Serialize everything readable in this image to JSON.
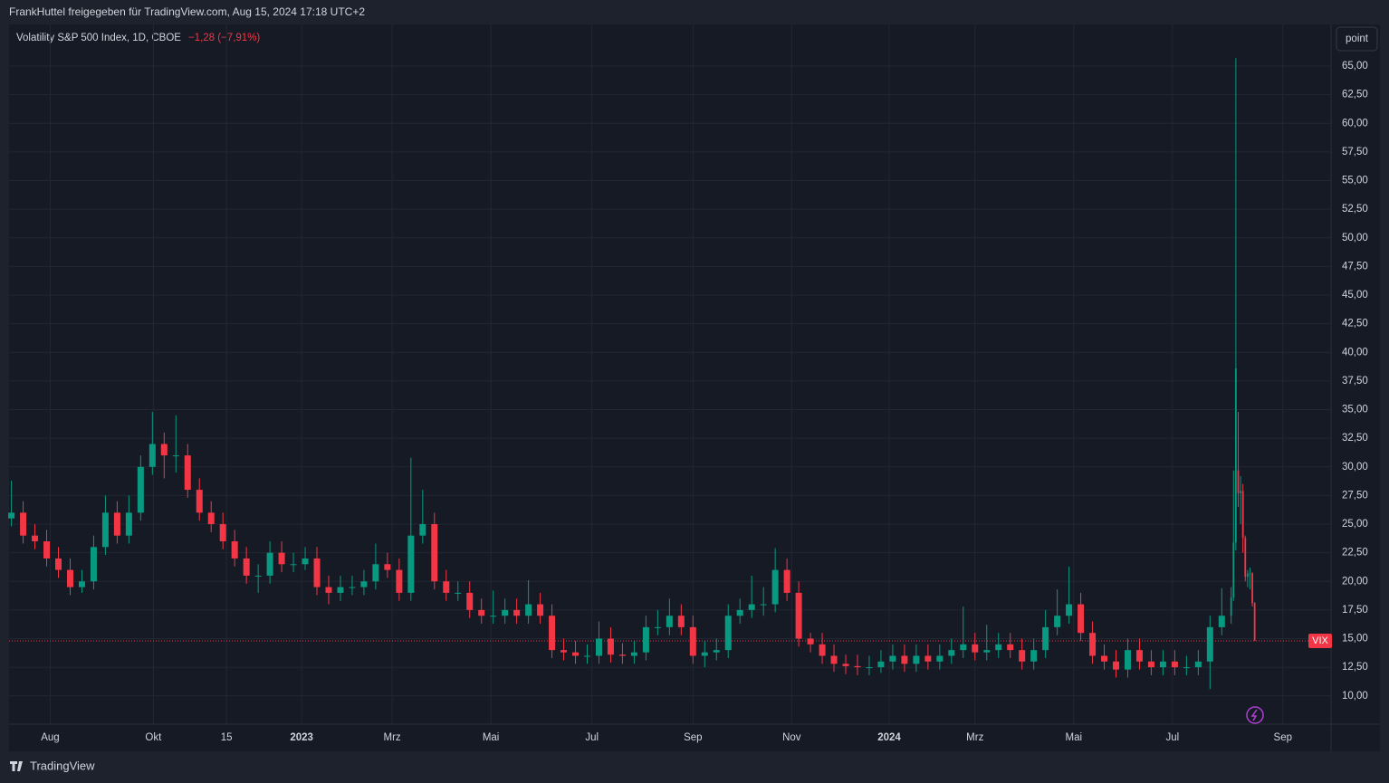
{
  "header": {
    "text": "FrankHuttel freigegeben für TradingView.com, Aug 15, 2024 17:18 UTC+2"
  },
  "footer": {
    "brand": "TradingView"
  },
  "chart_data": {
    "type": "candlestick",
    "legend": "Volatility S&P 500 Index, 1D, CBOE",
    "change": "−1,28 (−7,91%)",
    "scale_button": "point",
    "symbol_tag": "VIX",
    "up_color": "#089981",
    "down_color": "#f23645",
    "grid": true,
    "xlim": [
      -1,
      561.5
    ],
    "ylim": [
      7.53,
      68.64
    ],
    "xticks": [
      {
        "value": 16.5,
        "label": "Aug"
      },
      {
        "value": 60.4,
        "label": "Okt"
      },
      {
        "value": 91.5,
        "label": "15"
      },
      {
        "value": 123.5,
        "label": "2023"
      },
      {
        "value": 162,
        "label": "Mrz"
      },
      {
        "value": 204,
        "label": "Mai"
      },
      {
        "value": 247,
        "label": "Jul"
      },
      {
        "value": 290,
        "label": "Sep"
      },
      {
        "value": 332,
        "label": "Nov"
      },
      {
        "value": 373.5,
        "label": "2024"
      },
      {
        "value": 410,
        "label": "Mrz"
      },
      {
        "value": 452,
        "label": "Mai"
      },
      {
        "value": 494,
        "label": "Jul"
      },
      {
        "value": 541,
        "label": "Sep"
      }
    ],
    "yticks": [
      {
        "value": 10,
        "label": "10,00"
      },
      {
        "value": 12.5,
        "label": "12,50"
      },
      {
        "value": 15,
        "label": "15,00"
      },
      {
        "value": 17.5,
        "label": "17,50"
      },
      {
        "value": 20,
        "label": "20,00"
      },
      {
        "value": 22.5,
        "label": "22,50"
      },
      {
        "value": 25,
        "label": "25,00"
      },
      {
        "value": 27.5,
        "label": "27,50"
      },
      {
        "value": 30,
        "label": "30,00"
      },
      {
        "value": 32.5,
        "label": "32,50"
      },
      {
        "value": 35,
        "label": "35,00"
      },
      {
        "value": 37.5,
        "label": "37,50"
      },
      {
        "value": 40,
        "label": "40,00"
      },
      {
        "value": 42.5,
        "label": "42,50"
      },
      {
        "value": 45,
        "label": "45,00"
      },
      {
        "value": 47.5,
        "label": "47,50"
      },
      {
        "value": 50,
        "label": "50,00"
      },
      {
        "value": 52.5,
        "label": "52,50"
      },
      {
        "value": 55,
        "label": "55,00"
      },
      {
        "value": 57.5,
        "label": "57,50"
      },
      {
        "value": 60,
        "label": "60,00"
      },
      {
        "value": 62.5,
        "label": "62,50"
      },
      {
        "value": 65,
        "label": "65,00"
      }
    ],
    "x": [
      0,
      5,
      10,
      15,
      20,
      25,
      30,
      35,
      40,
      45,
      50,
      55,
      60,
      65,
      70,
      75,
      80,
      85,
      90,
      95,
      100,
      105,
      110,
      115,
      120,
      125,
      130,
      135,
      140,
      145,
      150,
      155,
      160,
      165,
      170,
      175,
      180,
      185,
      190,
      195,
      200,
      205,
      210,
      215,
      220,
      225,
      230,
      235,
      240,
      245,
      250,
      255,
      260,
      265,
      270,
      275,
      280,
      285,
      290,
      295,
      300,
      305,
      310,
      315,
      320,
      325,
      330,
      335,
      340,
      345,
      350,
      355,
      360,
      365,
      370,
      375,
      380,
      385,
      390,
      395,
      400,
      405,
      410,
      415,
      420,
      425,
      430,
      435,
      440,
      445,
      450,
      455,
      460,
      465,
      470,
      475,
      480,
      485,
      490,
      495,
      500,
      505,
      510,
      515,
      519,
      520,
      521,
      522,
      523,
      524,
      525,
      526,
      527,
      528,
      529
    ],
    "open": [
      25.5,
      26,
      24,
      23.5,
      22,
      21,
      19.5,
      20,
      23,
      26,
      24,
      26,
      30,
      32,
      31,
      31,
      28,
      26,
      25,
      23.5,
      22,
      20.5,
      20.5,
      22.5,
      21.5,
      21.5,
      22,
      19.5,
      19,
      19.5,
      19.5,
      20,
      21.5,
      21,
      19,
      24,
      25,
      20,
      19,
      19,
      17.5,
      17,
      17,
      17.5,
      17,
      18,
      17,
      14,
      13.8,
      13.5,
      13.5,
      15,
      13.6,
      13.5,
      13.8,
      16,
      16,
      17,
      16,
      13.5,
      13.8,
      14,
      17,
      17.5,
      18,
      18,
      21,
      19,
      15,
      14.5,
      13.5,
      12.8,
      12.6,
      12.5,
      12.5,
      13,
      13.5,
      12.8,
      13.5,
      13,
      13.5,
      14,
      14.5,
      13.8,
      14,
      14.5,
      14,
      13,
      14,
      16,
      17,
      18,
      15.5,
      13.5,
      13,
      12.3,
      14,
      13,
      12.5,
      13,
      12.5,
      12.5,
      13,
      16,
      17,
      18.6,
      23.4,
      29.7,
      27.7,
      27.9,
      23.8,
      20.4,
      20.7,
      20.7,
      18.1
    ],
    "high": [
      28.8,
      27,
      25,
      24.5,
      23,
      22,
      21,
      24,
      27.5,
      27,
      27.5,
      31,
      34.8,
      33,
      34.5,
      32,
      29,
      27,
      26,
      24.5,
      23,
      21.5,
      23.5,
      23.5,
      22.5,
      23,
      23,
      20.5,
      20.5,
      20.5,
      21,
      23.3,
      22.5,
      22,
      30.8,
      28,
      26,
      21,
      20,
      20,
      18.5,
      19.2,
      18.5,
      18.5,
      20.1,
      19,
      18,
      15,
      14.8,
      14.5,
      16.5,
      16,
      14.6,
      14.8,
      17,
      17.5,
      18.5,
      18,
      17,
      14.8,
      15,
      18,
      18.5,
      20.5,
      19.5,
      22.9,
      22,
      20,
      15.5,
      15.5,
      14.5,
      13.6,
      13.6,
      13.5,
      14,
      14.5,
      14.5,
      14.5,
      14.5,
      14.5,
      15,
      17.8,
      15.5,
      16.2,
      15.5,
      15.5,
      15,
      15,
      17.5,
      19.3,
      21.3,
      19,
      16.5,
      14.5,
      14,
      15,
      15,
      14,
      14,
      14,
      13.5,
      14,
      17,
      19.4,
      19.5,
      29.7,
      65.7,
      34.8,
      29.2,
      28.5,
      24,
      21,
      21.2,
      20.8,
      18.2
    ],
    "low": [
      24.8,
      23.3,
      22.8,
      21.3,
      20.3,
      18.8,
      19,
      19.3,
      22.3,
      23.3,
      23.3,
      25.3,
      29.3,
      29,
      29.5,
      27.3,
      25.3,
      24.3,
      22.8,
      21.3,
      19.8,
      19,
      19.8,
      20.8,
      20.8,
      21,
      18.8,
      18,
      18.3,
      18.8,
      18.8,
      19.3,
      20.3,
      18.3,
      18.3,
      23.3,
      19.3,
      18.3,
      18.3,
      16.8,
      16.3,
      16.3,
      16.3,
      16.3,
      16.3,
      16.3,
      13.3,
      13.1,
      12.8,
      12.8,
      12.8,
      12.9,
      12.8,
      12.8,
      13.1,
      15.3,
      15.3,
      15.3,
      12.8,
      12.5,
      13.1,
      13.3,
      16.3,
      16.8,
      17,
      17.3,
      18.3,
      14.3,
      13.8,
      12.8,
      12.1,
      11.9,
      11.8,
      11.8,
      12,
      12.3,
      12.1,
      12.1,
      12.3,
      12.3,
      12.8,
      13.3,
      13.1,
      13.1,
      13.3,
      13.3,
      12.3,
      12.3,
      13.3,
      15.3,
      16.3,
      14.8,
      12.8,
      12.3,
      11.6,
      11.6,
      12.3,
      11.8,
      11.8,
      11.8,
      11.8,
      11.8,
      10.6,
      15.3,
      16.3,
      18.3,
      22.7,
      26.5,
      25,
      22.5,
      20,
      19.5,
      19.3,
      17.8,
      14.8
    ],
    "close": [
      26,
      24,
      23.5,
      22,
      21,
      19.5,
      20,
      23,
      26,
      24,
      26,
      30,
      32,
      31,
      31,
      28,
      26,
      25,
      23.5,
      22,
      20.5,
      20.5,
      22.5,
      21.5,
      21.5,
      22,
      19.5,
      19,
      19.5,
      19.5,
      20,
      21.5,
      21,
      19,
      24,
      25,
      20,
      19,
      19,
      17.5,
      17,
      17,
      17.5,
      17,
      18,
      17,
      14,
      13.8,
      13.5,
      13.5,
      15,
      13.6,
      13.5,
      13.8,
      16,
      16,
      17,
      16,
      13.5,
      13.8,
      14,
      17,
      17.5,
      18,
      18,
      21,
      19,
      15,
      14.5,
      13.5,
      12.8,
      12.6,
      12.5,
      12.5,
      13,
      13.5,
      12.8,
      13.5,
      13,
      13.5,
      14,
      14.5,
      13.8,
      14,
      14.5,
      14,
      13,
      14,
      16,
      17,
      18,
      15.5,
      13.5,
      13,
      12.3,
      14,
      13,
      12.5,
      13,
      12.5,
      12.5,
      13,
      16,
      17,
      18.6,
      23.4,
      38.6,
      27.7,
      27.9,
      23.8,
      20.4,
      20.7,
      20.7,
      18.1,
      14.8
    ]
  }
}
